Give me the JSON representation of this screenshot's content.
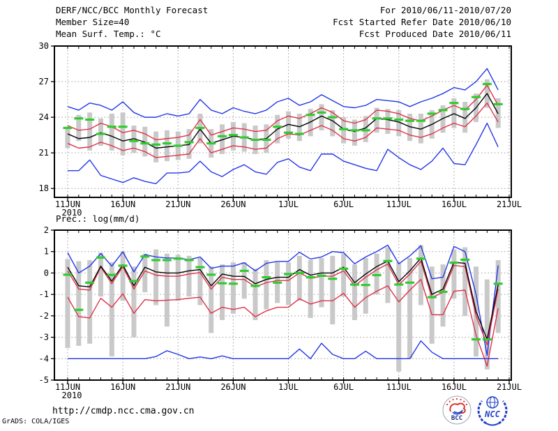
{
  "header": {
    "title": "DERF/NCC/BCC Monthly Forecast",
    "member_size": "Member Size=40",
    "for_range": "For 2010/06/11-2010/07/20",
    "refer_date": "Fcst Started Refer Date 2010/06/10",
    "produced_date": "Fcst Produced Date 2010/06/11"
  },
  "footer": {
    "url": "http://cmdp.ncc.cma.gov.cn",
    "credit": "GrADS: COLA/IGES"
  },
  "logos": {
    "bcc_text": "BCC",
    "ncc_text": "NCC",
    "bcc_color": "#1c2f86",
    "ncc_color": "#2141c8",
    "bcc_swirl_red": "#d93025",
    "bcc_swirl_blue": "#2141c8"
  },
  "colors": {
    "blue_line": "#2236e8",
    "red_line": "#e03048",
    "black_line": "#000000",
    "green_dash": "#2ecc2e",
    "gray_bar": "#c9c9c9",
    "grid": "#999999",
    "frame": "#000000"
  },
  "chart_data": [
    {
      "type": "line",
      "title": "Mean Surf. Temp.: °C",
      "x_tick_labels": [
        "11JUN",
        "16JUN",
        "21JUN",
        "26JUN",
        "1JUL",
        "6JUL",
        "11JUL",
        "16JUL",
        "21JUL"
      ],
      "x_tick_days": [
        0,
        5,
        10,
        15,
        20,
        25,
        30,
        35,
        40
      ],
      "x_year_label": "2010",
      "n_points": 40,
      "ylim": [
        17.25,
        30
      ],
      "yticks": [
        18,
        21,
        24,
        27,
        30
      ],
      "grid": true,
      "legend": "none",
      "series": [
        {
          "name": "ensemble-max",
          "color": "#2236e8",
          "values": [
            24.9,
            24.6,
            25.2,
            25.0,
            24.6,
            25.3,
            24.4,
            24.0,
            24.0,
            24.3,
            24.1,
            24.3,
            25.5,
            24.6,
            24.3,
            24.8,
            24.5,
            24.3,
            24.6,
            25.3,
            25.6,
            25.0,
            25.3,
            25.9,
            25.4,
            24.9,
            24.8,
            25.0,
            25.5,
            25.4,
            25.3,
            24.9,
            25.3,
            25.6,
            26.0,
            26.5,
            26.3,
            27.0,
            28.1,
            26.3
          ]
        },
        {
          "name": "ensemble-upper",
          "color": "#e03048",
          "values": [
            23.3,
            22.9,
            23.0,
            23.5,
            23.2,
            22.7,
            22.9,
            22.6,
            22.1,
            22.2,
            22.3,
            22.5,
            23.8,
            22.5,
            22.8,
            23.1,
            23.0,
            22.8,
            22.9,
            23.7,
            24.1,
            23.9,
            24.3,
            24.8,
            24.4,
            23.7,
            23.5,
            23.8,
            24.6,
            24.5,
            24.3,
            23.9,
            23.7,
            24.1,
            24.6,
            25.0,
            24.6,
            25.5,
            26.7,
            25.0
          ]
        },
        {
          "name": "ensemble-mean",
          "color": "#000000",
          "values": [
            22.6,
            22.2,
            22.3,
            22.7,
            22.4,
            22.0,
            22.2,
            21.9,
            21.4,
            21.5,
            21.6,
            21.7,
            23.0,
            21.8,
            22.1,
            22.4,
            22.3,
            22.1,
            22.2,
            23.0,
            23.4,
            23.2,
            23.6,
            24.1,
            23.7,
            23.0,
            22.8,
            23.1,
            23.9,
            23.8,
            23.6,
            23.2,
            23.0,
            23.4,
            23.9,
            24.3,
            23.9,
            24.8,
            26.0,
            24.3
          ]
        },
        {
          "name": "ensemble-lower",
          "color": "#e03048",
          "values": [
            21.8,
            21.4,
            21.5,
            21.9,
            21.6,
            21.2,
            21.4,
            21.1,
            20.6,
            20.7,
            20.8,
            20.9,
            22.2,
            21.0,
            21.3,
            21.6,
            21.5,
            21.3,
            21.4,
            22.2,
            22.6,
            22.5,
            22.9,
            23.3,
            22.9,
            22.2,
            22.0,
            22.3,
            23.1,
            23.0,
            22.9,
            22.5,
            22.3,
            22.6,
            23.1,
            23.5,
            23.2,
            24.1,
            25.2,
            23.6
          ]
        },
        {
          "name": "ensemble-min",
          "color": "#2236e8",
          "values": [
            19.5,
            19.5,
            20.4,
            19.1,
            18.8,
            18.5,
            18.9,
            18.6,
            18.4,
            19.3,
            19.3,
            19.4,
            20.3,
            19.4,
            19.0,
            19.6,
            20.0,
            19.4,
            19.2,
            20.2,
            20.5,
            19.8,
            19.5,
            20.9,
            20.9,
            20.3,
            20.0,
            19.7,
            19.5,
            21.3,
            20.6,
            20.0,
            19.6,
            20.3,
            21.4,
            20.1,
            20.0,
            21.7,
            23.5,
            21.5
          ]
        }
      ],
      "obs": {
        "name": "daily-green-marker",
        "color": "#2ecc2e",
        "values": [
          23.1,
          23.9,
          23.8,
          22.6,
          23.2,
          23.2,
          22.0,
          21.8,
          21.7,
          21.8,
          21.6,
          21.9,
          23.1,
          21.8,
          22.4,
          22.5,
          22.3,
          22.1,
          22.1,
          23.2,
          22.7,
          22.6,
          24.2,
          24.4,
          24.0,
          23.0,
          22.9,
          22.9,
          23.9,
          23.9,
          23.8,
          23.7,
          23.7,
          24.3,
          24.6,
          25.2,
          24.7,
          25.7,
          26.8,
          25.1
        ]
      },
      "bars": {
        "color": "#c9c9c9",
        "top": [
          23.2,
          24.2,
          24.4,
          23.9,
          24.3,
          24.4,
          23.3,
          23.2,
          22.8,
          22.9,
          22.8,
          23.0,
          24.3,
          23.0,
          23.4,
          23.6,
          23.5,
          23.3,
          23.4,
          24.2,
          24.5,
          24.3,
          24.7,
          25.1,
          24.6,
          24.0,
          23.8,
          24.1,
          24.8,
          24.7,
          24.6,
          24.3,
          24.3,
          24.6,
          25.0,
          25.6,
          25.3,
          26.0,
          27.2,
          25.6
        ],
        "bottom": [
          21.4,
          22.0,
          21.2,
          21.6,
          21.2,
          20.8,
          21.0,
          20.7,
          20.2,
          20.3,
          20.4,
          20.5,
          21.8,
          20.6,
          20.9,
          21.2,
          21.1,
          20.9,
          21.0,
          21.8,
          22.2,
          22.0,
          22.4,
          22.9,
          22.4,
          21.8,
          21.6,
          21.9,
          22.7,
          22.6,
          22.4,
          22.0,
          21.8,
          22.2,
          22.7,
          23.1,
          22.7,
          23.6,
          24.8,
          23.1
        ]
      }
    },
    {
      "type": "line",
      "title": "Prec.: log(mm/d)",
      "x_tick_labels": [
        "11JUN",
        "16JUN",
        "21JUN",
        "26JUN",
        "1JUL",
        "6JUL",
        "11JUL",
        "16JUL",
        "21JUL"
      ],
      "x_tick_days": [
        0,
        5,
        10,
        15,
        20,
        25,
        30,
        35,
        40
      ],
      "x_year_label": "2010",
      "n_points": 40,
      "ylim": [
        -5,
        2
      ],
      "yticks": [
        -5,
        -4,
        -3,
        -2,
        -1,
        0,
        1,
        2
      ],
      "grid": true,
      "legend": "none",
      "series": [
        {
          "name": "ensemble-max",
          "color": "#2236e8",
          "values": [
            0.95,
            0.0,
            0.32,
            0.91,
            0.32,
            0.99,
            0.05,
            0.86,
            0.75,
            0.7,
            0.7,
            0.62,
            0.75,
            0.22,
            0.32,
            0.32,
            0.48,
            0.1,
            0.45,
            0.54,
            0.54,
            0.97,
            0.65,
            0.75,
            1.0,
            0.95,
            0.43,
            0.75,
            1.0,
            1.3,
            0.43,
            0.8,
            1.27,
            -0.27,
            -0.2,
            1.24,
            1.0,
            -1.0,
            -3.85,
            0.35
          ]
        },
        {
          "name": "ensemble-upper",
          "color": "#e03048",
          "values": [
            0.1,
            -0.75,
            -0.8,
            0.28,
            -0.5,
            0.3,
            -0.75,
            0.1,
            -0.1,
            -0.15,
            -0.15,
            -0.05,
            0.02,
            -0.75,
            -0.2,
            -0.3,
            -0.3,
            -0.65,
            -0.45,
            -0.35,
            -0.35,
            0.0,
            -0.25,
            -0.15,
            -0.15,
            0.1,
            -0.6,
            -0.2,
            0.15,
            0.42,
            -0.55,
            -0.05,
            0.55,
            -1.15,
            -0.9,
            0.35,
            0.3,
            -2.0,
            -3.35,
            -0.75
          ]
        },
        {
          "name": "ensemble-mean",
          "color": "#000000",
          "values": [
            0.27,
            -0.6,
            -0.65,
            0.32,
            -0.38,
            0.38,
            -0.6,
            0.27,
            0.05,
            0.0,
            0.0,
            0.1,
            0.16,
            -0.6,
            -0.05,
            -0.15,
            -0.16,
            -0.5,
            -0.3,
            -0.2,
            -0.2,
            0.16,
            -0.1,
            0.0,
            0.0,
            0.27,
            -0.45,
            -0.05,
            0.3,
            0.56,
            -0.4,
            0.1,
            0.7,
            -1.0,
            -0.75,
            0.5,
            0.45,
            -1.8,
            -3.1,
            -0.55
          ]
        },
        {
          "name": "ensemble-lower",
          "color": "#e03048",
          "values": [
            -1.13,
            -2.04,
            -2.1,
            -1.18,
            -1.6,
            -0.97,
            -1.88,
            -1.24,
            -1.3,
            -1.27,
            -1.24,
            -1.18,
            -1.13,
            -1.88,
            -1.6,
            -1.7,
            -1.6,
            -2.04,
            -1.77,
            -1.6,
            -1.6,
            -1.2,
            -1.45,
            -1.3,
            -1.3,
            -0.95,
            -1.6,
            -1.15,
            -0.85,
            -0.6,
            -1.35,
            -0.8,
            -0.3,
            -1.95,
            -1.95,
            -0.85,
            -0.8,
            -2.9,
            -4.35,
            -1.65
          ]
        },
        {
          "name": "ensemble-min",
          "color": "#2236e8",
          "values": [
            -4,
            -4,
            -4,
            -4,
            -4,
            -4,
            -4,
            -4,
            -3.9,
            -3.63,
            -3.8,
            -4,
            -3.92,
            -4,
            -3.87,
            -4,
            -4,
            -4,
            -4,
            -4,
            -4,
            -3.55,
            -4,
            -3.28,
            -3.8,
            -4,
            -4,
            -3.65,
            -4,
            -4,
            -4,
            -4,
            -3.17,
            -3.7,
            -4,
            -4,
            -4,
            -4,
            -4,
            -4
          ]
        }
      ],
      "obs": {
        "name": "daily-green-marker",
        "color": "#2ecc2e",
        "values": [
          -0.08,
          -1.72,
          -0.45,
          0.72,
          -0.09,
          0.34,
          -0.38,
          0.77,
          0.6,
          0.6,
          0.67,
          0.6,
          0.27,
          -0.08,
          -0.48,
          -0.5,
          0.1,
          -0.6,
          -0.2,
          -0.45,
          -0.05,
          0.0,
          -0.2,
          -0.13,
          -0.27,
          0.2,
          -0.54,
          -0.56,
          -0.1,
          0.56,
          -0.54,
          -0.45,
          0.67,
          -1.13,
          -0.88,
          0.48,
          0.62,
          -3.1,
          -3.1,
          -0.5
        ]
      },
      "bars": {
        "color": "#c9c9c9",
        "top": [
          0.65,
          0.55,
          0.6,
          0.95,
          0.5,
          1.0,
          0.3,
          0.9,
          1.1,
          0.9,
          0.85,
          0.8,
          0.7,
          0.3,
          0.4,
          0.5,
          0.5,
          0.2,
          0.6,
          0.5,
          0.5,
          0.8,
          0.6,
          0.7,
          0.8,
          0.9,
          0.4,
          0.7,
          0.9,
          1.2,
          0.5,
          0.7,
          1.3,
          0.3,
          0.4,
          1.1,
          1.2,
          0.3,
          -0.3,
          0.6
        ],
        "bottom": [
          -3.5,
          -3.4,
          -3.3,
          -1.1,
          -3.9,
          -1.3,
          -3.0,
          -0.9,
          -1.5,
          -2.5,
          -1.3,
          -1.1,
          -1.5,
          -2.8,
          -2.2,
          -1.9,
          -1.2,
          -2.2,
          -1.7,
          -1.4,
          -1.5,
          -1.3,
          -2.1,
          -1.6,
          -2.4,
          -1.1,
          -2.2,
          -1.9,
          -1.0,
          -1.4,
          -4.6,
          -4.0,
          -1.5,
          -3.3,
          -2.5,
          -1.2,
          -2.0,
          -3.9,
          -4.5,
          -2.8
        ]
      }
    }
  ]
}
